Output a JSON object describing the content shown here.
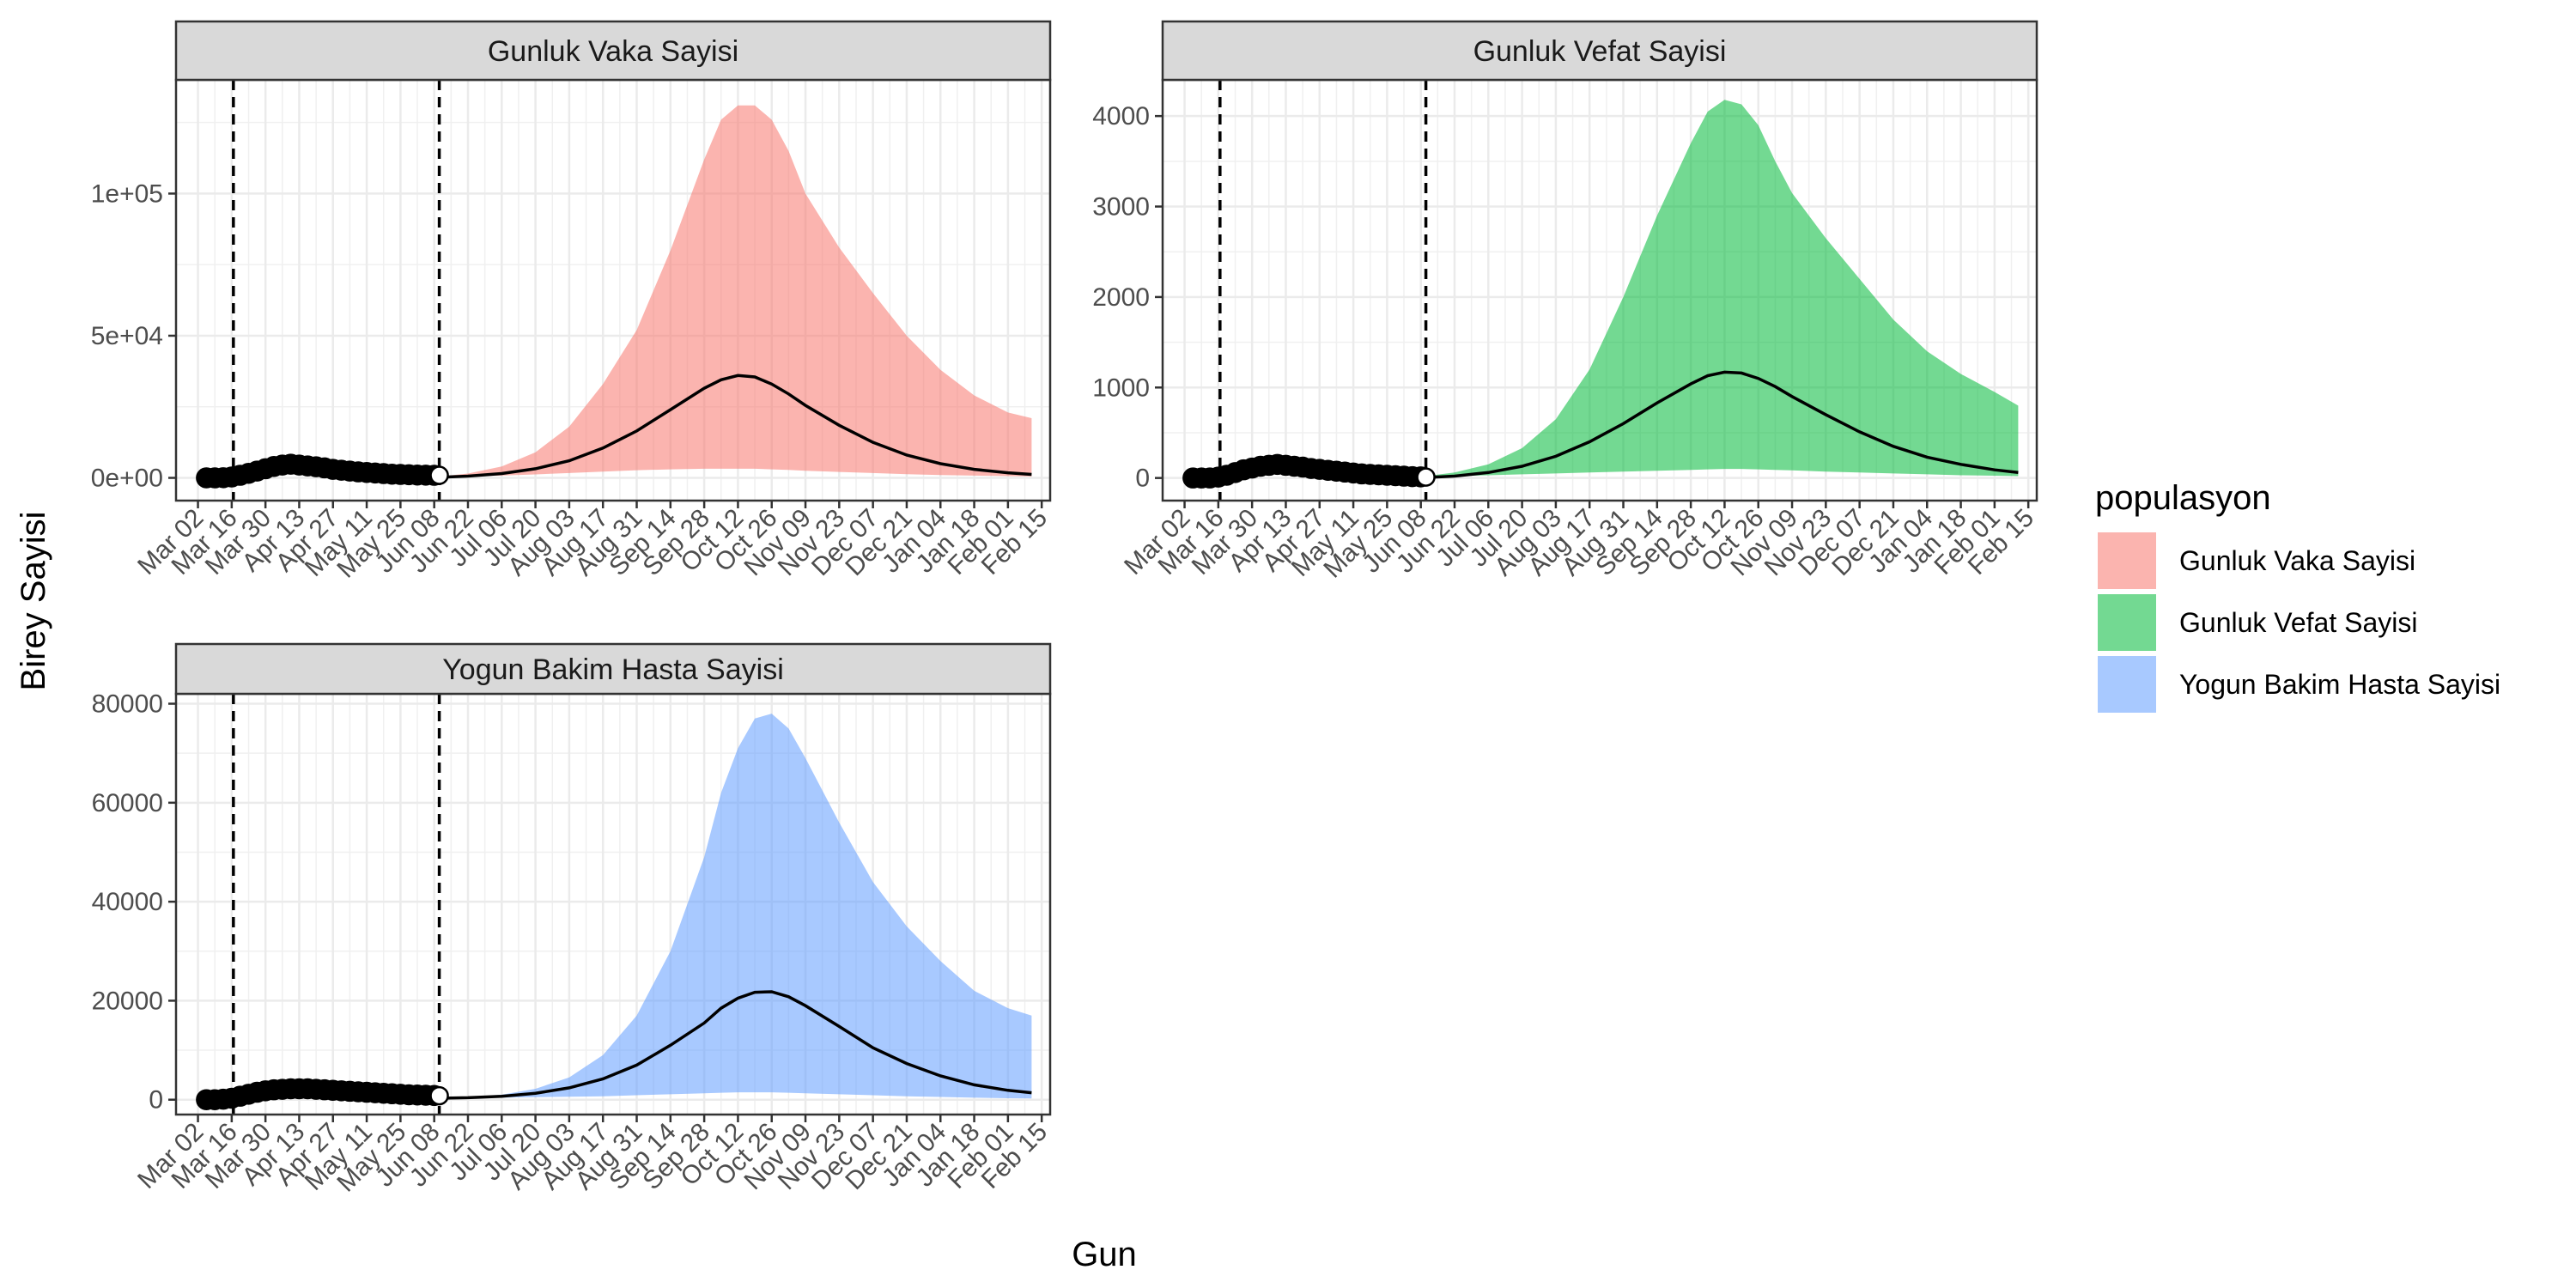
{
  "chart_data": {
    "type": "area",
    "xlabel": "Gun",
    "ylabel": "Birey Sayisi",
    "x_tick_labels": [
      "Mar 02",
      "Mar 16",
      "Mar 30",
      "Apr 13",
      "Apr 27",
      "May 11",
      "May 25",
      "Jun 08",
      "Jun 22",
      "Jul 06",
      "Jul 20",
      "Aug 03",
      "Aug 17",
      "Aug 31",
      "Sep 14",
      "Sep 28",
      "Oct 12",
      "Oct 26",
      "Nov 09",
      "Nov 23",
      "Dec 07",
      "Dec 21",
      "Jan 04",
      "Jan 18",
      "Feb 01",
      "Feb 15"
    ],
    "x_tick_week_index": [
      0,
      2,
      4,
      6,
      8,
      10,
      12,
      14,
      16,
      18,
      20,
      22,
      24,
      26,
      28,
      30,
      32,
      34,
      36,
      38,
      40,
      42,
      44,
      46,
      48,
      50
    ],
    "vertical_lines_week_index": [
      2.1,
      14.3
    ],
    "grid": true,
    "legend": {
      "title": "populasyon",
      "position": "right",
      "entries": [
        {
          "label": "Gunluk Vaka Sayisi",
          "color": "#F8766D"
        },
        {
          "label": "Gunluk Vefat Sayisi",
          "color": "#00BA38"
        },
        {
          "label": "Yogun Bakim Hasta Sayisi",
          "color": "#619CFF"
        }
      ]
    },
    "panels": [
      {
        "title": "Gunluk Vaka Sayisi",
        "color": "#F8766D",
        "ylim": [
          -8000,
          140000
        ],
        "y_ticks": [
          0,
          50000,
          100000
        ],
        "y_tick_labels": [
          "0e+00",
          "5e+04",
          "1e+05"
        ],
        "band_weeks": [
          14.3,
          16,
          18,
          20,
          22,
          24,
          26,
          28,
          30,
          31,
          32,
          33,
          34,
          35,
          36,
          38,
          40,
          42,
          44,
          46,
          48,
          49.4
        ],
        "band_upper": [
          500,
          1500,
          4000,
          9000,
          18000,
          33000,
          52000,
          80000,
          112000,
          126000,
          131000,
          131000,
          126000,
          115000,
          100000,
          81000,
          65000,
          50000,
          38000,
          29000,
          23000,
          21000
        ],
        "band_lower": [
          300,
          500,
          800,
          1200,
          1700,
          2200,
          2700,
          3000,
          3200,
          3200,
          3200,
          3200,
          3000,
          2800,
          2500,
          2100,
          1700,
          1300,
          1000,
          800,
          600,
          500
        ],
        "line_weeks": [
          14.3,
          16,
          18,
          20,
          22,
          24,
          26,
          28,
          30,
          31,
          32,
          33,
          34,
          35,
          36,
          38,
          40,
          42,
          44,
          46,
          48,
          49.4
        ],
        "line_values": [
          200,
          600,
          1500,
          3200,
          6000,
          10500,
          16500,
          24000,
          31500,
          34500,
          36000,
          35500,
          33000,
          29500,
          25500,
          18500,
          12500,
          8000,
          5000,
          3000,
          1800,
          1200
        ],
        "points_weeks": [
          0.5,
          1,
          1.5,
          2,
          2.5,
          3,
          3.5,
          4,
          4.5,
          5,
          5.5,
          6,
          6.5,
          7,
          7.5,
          8,
          8.5,
          9,
          9.5,
          10,
          10.5,
          11,
          11.5,
          12,
          12.5,
          13,
          13.5,
          14,
          14.3
        ],
        "points_values": [
          0,
          0,
          50,
          300,
          900,
          1600,
          2400,
          3200,
          4000,
          4500,
          4800,
          4500,
          4200,
          3900,
          3500,
          3000,
          2700,
          2400,
          2100,
          1900,
          1700,
          1500,
          1300,
          1200,
          1100,
          1000,
          950,
          900,
          900
        ]
      },
      {
        "title": "Gunluk Vefat Sayisi",
        "color": "#00BA38",
        "ylim": [
          -250,
          4400
        ],
        "y_ticks": [
          0,
          1000,
          2000,
          3000,
          4000
        ],
        "y_tick_labels": [
          "0",
          "1000",
          "2000",
          "3000",
          "4000"
        ],
        "band_weeks": [
          14.3,
          16,
          18,
          20,
          22,
          24,
          26,
          28,
          30,
          31,
          32,
          33,
          34,
          35,
          36,
          38,
          40,
          42,
          44,
          46,
          48,
          49.4
        ],
        "band_upper": [
          20,
          60,
          150,
          330,
          650,
          1200,
          2000,
          2900,
          3700,
          4050,
          4180,
          4130,
          3900,
          3500,
          3150,
          2650,
          2200,
          1750,
          1400,
          1150,
          950,
          800
        ],
        "band_lower": [
          10,
          20,
          30,
          40,
          50,
          60,
          70,
          80,
          90,
          95,
          100,
          100,
          95,
          90,
          85,
          70,
          60,
          50,
          40,
          30,
          25,
          20
        ],
        "line_weeks": [
          14.3,
          16,
          18,
          20,
          22,
          24,
          26,
          28,
          30,
          31,
          32,
          33,
          34,
          35,
          36,
          38,
          40,
          42,
          44,
          46,
          48,
          49.4
        ],
        "line_values": [
          5,
          20,
          60,
          130,
          240,
          400,
          600,
          830,
          1040,
          1130,
          1170,
          1160,
          1100,
          1010,
          900,
          700,
          510,
          350,
          230,
          150,
          90,
          60
        ],
        "points_weeks": [
          0.5,
          1,
          1.5,
          2,
          2.5,
          3,
          3.5,
          4,
          4.5,
          5,
          5.5,
          6,
          6.5,
          7,
          7.5,
          8,
          8.5,
          9,
          9.5,
          10,
          10.5,
          11,
          11.5,
          12,
          12.5,
          13,
          13.5,
          14,
          14.3
        ],
        "points_values": [
          0,
          0,
          0,
          10,
          30,
          60,
          90,
          110,
          130,
          140,
          150,
          140,
          130,
          120,
          105,
          95,
          85,
          75,
          65,
          55,
          45,
          40,
          35,
          30,
          25,
          20,
          15,
          12,
          10
        ]
      },
      {
        "title": "Yogun Bakim Hasta Sayisi",
        "color": "#619CFF",
        "ylim": [
          -3000,
          82000
        ],
        "y_ticks": [
          0,
          20000,
          40000,
          60000,
          80000
        ],
        "y_tick_labels": [
          "0",
          "20000",
          "40000",
          "60000",
          "80000"
        ],
        "band_weeks": [
          14.3,
          16,
          18,
          20,
          22,
          24,
          26,
          28,
          30,
          31,
          32,
          33,
          34,
          35,
          36,
          38,
          40,
          42,
          44,
          46,
          48,
          49.4
        ],
        "band_upper": [
          300,
          500,
          1000,
          2200,
          4500,
          9000,
          17000,
          30000,
          49000,
          62000,
          71000,
          77000,
          78000,
          75000,
          69000,
          56000,
          44000,
          35000,
          28000,
          22000,
          18500,
          17000
        ],
        "band_lower": [
          200,
          300,
          400,
          500,
          600,
          700,
          900,
          1100,
          1300,
          1400,
          1500,
          1500,
          1500,
          1400,
          1300,
          1100,
          900,
          700,
          550,
          400,
          300,
          250
        ],
        "line_weeks": [
          14.3,
          16,
          18,
          20,
          22,
          24,
          26,
          28,
          30,
          31,
          32,
          33,
          34,
          35,
          36,
          38,
          40,
          42,
          44,
          46,
          48,
          49.4
        ],
        "line_values": [
          300,
          400,
          700,
          1300,
          2400,
          4200,
          7000,
          11000,
          15500,
          18500,
          20500,
          21700,
          21800,
          20800,
          19000,
          14800,
          10500,
          7300,
          4800,
          3000,
          1900,
          1400
        ],
        "points_weeks": [
          0.5,
          1,
          1.5,
          2,
          2.5,
          3,
          3.5,
          4,
          4.5,
          5,
          5.5,
          6,
          6.5,
          7,
          7.5,
          8,
          8.5,
          9,
          9.5,
          10,
          10.5,
          11,
          11.5,
          12,
          12.5,
          13,
          13.5,
          14,
          14.3
        ],
        "points_values": [
          0,
          0,
          100,
          300,
          700,
          1100,
          1500,
          1800,
          2000,
          2100,
          2200,
          2200,
          2200,
          2100,
          2000,
          1900,
          1800,
          1700,
          1600,
          1500,
          1400,
          1300,
          1200,
          1100,
          1000,
          950,
          900,
          850,
          800
        ]
      }
    ]
  }
}
